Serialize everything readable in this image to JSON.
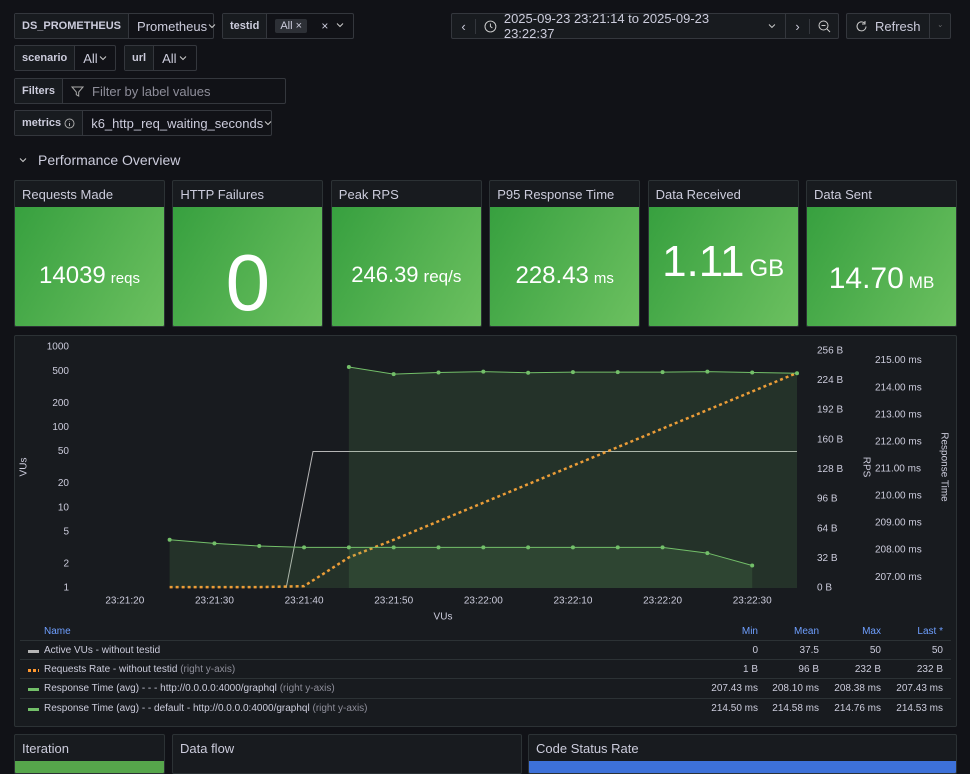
{
  "variables": [
    {
      "label": "DS_PROMETHEUS",
      "value": "Prometheus"
    },
    {
      "label": "testid",
      "value": "All"
    },
    {
      "label": "scenario",
      "value": "All"
    },
    {
      "label": "url",
      "value": "All"
    },
    {
      "label": "metrics",
      "value": "k6_http_req_waiting_seconds"
    }
  ],
  "filters": {
    "label": "Filters",
    "placeholder": "Filter by label values"
  },
  "time_range": "2025-09-23 23:21:14 to 2025-09-23 23:22:37",
  "refresh": "Refresh",
  "section": "Performance Overview",
  "stats": [
    {
      "title": "Requests Made",
      "value": "14039",
      "unit": "reqs"
    },
    {
      "title": "HTTP Failures",
      "value": "0"
    },
    {
      "title": "Peak RPS",
      "value": "246.39",
      "unit": "req/s"
    },
    {
      "title": "P95 Response Time",
      "value": "228.43",
      "unit": "ms"
    },
    {
      "title": "Data Received",
      "value": "1.11",
      "unit": "GB"
    },
    {
      "title": "Data Sent",
      "value": "14.70",
      "unit": "MB"
    }
  ],
  "chart_data": {
    "type": "line",
    "x_label": "VUs",
    "y_label": "VUs",
    "y2_label": "RPS",
    "y3_label": "Response Time",
    "xlim": [
      "23:21:15",
      "23:22:35"
    ],
    "xticks": [
      "23:21:20",
      "23:21:30",
      "23:21:40",
      "23:21:50",
      "23:22:00",
      "23:22:10",
      "23:22:20",
      "23:22:30"
    ],
    "yscale": "log",
    "ylim": [
      1,
      1000
    ],
    "yticks": [
      1,
      2,
      5,
      10,
      20,
      50,
      100,
      200,
      500,
      1000
    ],
    "y2lim": [
      0,
      260
    ],
    "y2ticks": [
      {
        "value": 0,
        "label": "0 B"
      },
      {
        "value": 32,
        "label": "32 B"
      },
      {
        "value": 64,
        "label": "64 B"
      },
      {
        "value": 96,
        "label": "96 B"
      },
      {
        "value": 128,
        "label": "128 B"
      },
      {
        "value": 160,
        "label": "160 B"
      },
      {
        "value": 192,
        "label": "192 B"
      },
      {
        "value": 224,
        "label": "224 B"
      },
      {
        "value": 256,
        "label": "256 B"
      }
    ],
    "y3lim": [
      206.6,
      215.5
    ],
    "y3ticks": [
      {
        "value": 207,
        "label": "207.00 ms"
      },
      {
        "value": 208,
        "label": "208.00 ms"
      },
      {
        "value": 209,
        "label": "209.00 ms"
      },
      {
        "value": 210,
        "label": "210.00 ms"
      },
      {
        "value": 211,
        "label": "211.00 ms"
      },
      {
        "value": 212,
        "label": "212.00 ms"
      },
      {
        "value": 213,
        "label": "213.00 ms"
      },
      {
        "value": 214,
        "label": "214.00 ms"
      },
      {
        "value": 215,
        "label": "215.00 ms"
      }
    ],
    "legend_columns": [
      "Name",
      "Min",
      "Mean",
      "Max",
      "Last *"
    ],
    "series": [
      {
        "name": "Active VUs - without testid",
        "color": "#b5b5b5",
        "axis": "y",
        "x": [
          "23:21:38",
          "23:21:41",
          "23:22:35"
        ],
        "values": [
          1,
          50,
          50
        ],
        "stats": [
          "0",
          "37.5",
          "50",
          "50"
        ]
      },
      {
        "name": "Requests Rate - without testid",
        "color": "#ff9830",
        "axis": "y2",
        "dashed": true,
        "note": "(right y-axis)",
        "x": [
          "23:21:25",
          "23:21:30",
          "23:21:35",
          "23:21:40",
          "23:21:45",
          "23:21:50",
          "23:21:55",
          "23:22:00",
          "23:22:05",
          "23:22:10",
          "23:22:15",
          "23:22:20",
          "23:22:25",
          "23:22:30",
          "23:22:35"
        ],
        "values": [
          1,
          1,
          1,
          2,
          33,
          52,
          72,
          92,
          112,
          132,
          152,
          172,
          192,
          212,
          232
        ],
        "stats": [
          "1 B",
          "96 B",
          "232 B",
          "232 B"
        ]
      },
      {
        "name": "Response Time (avg) - - - http://0.0.0.0:4000/graphql",
        "color": "#73bf69",
        "axis": "y3",
        "points": true,
        "fill": true,
        "note": "(right y-axis)",
        "x": [
          "23:21:25",
          "23:21:30",
          "23:21:35",
          "23:21:40",
          "23:21:45",
          "23:21:50",
          "23:21:55",
          "23:22:00",
          "23:22:05",
          "23:22:10",
          "23:22:15",
          "23:22:20",
          "23:22:25",
          "23:22:30"
        ],
        "values": [
          208.38,
          208.25,
          208.15,
          208.1,
          208.1,
          208.1,
          208.1,
          208.1,
          208.1,
          208.1,
          208.1,
          208.1,
          207.89,
          207.43
        ],
        "stats": [
          "207.43 ms",
          "208.10 ms",
          "208.38 ms",
          "207.43 ms"
        ]
      },
      {
        "name": "Response Time (avg) - - default - http://0.0.0.0:4000/graphql",
        "color": "#73bf69",
        "axis": "y3",
        "points": true,
        "fill": true,
        "note": "(right y-axis)",
        "x": [
          "23:21:45",
          "23:21:50",
          "23:21:55",
          "23:22:00",
          "23:22:05",
          "23:22:10",
          "23:22:15",
          "23:22:20",
          "23:22:25",
          "23:22:30",
          "23:22:35"
        ],
        "values": [
          214.76,
          214.5,
          214.56,
          214.59,
          214.55,
          214.57,
          214.57,
          214.57,
          214.59,
          214.56,
          214.53
        ],
        "stats": [
          "214.50 ms",
          "214.58 ms",
          "214.76 ms",
          "214.53 ms"
        ]
      }
    ]
  },
  "panels": [
    "Iteration",
    "Data flow",
    "Code Status Rate"
  ]
}
